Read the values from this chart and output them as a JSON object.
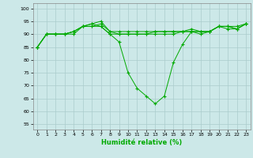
{
  "xlabel": "Humidité relative (%)",
  "background_color": "#cce8e8",
  "grid_color": "#aacccc",
  "line_color": "#00aa00",
  "xlim": [
    -0.5,
    23.5
  ],
  "ylim": [
    53,
    102
  ],
  "yticks": [
    55,
    60,
    65,
    70,
    75,
    80,
    85,
    90,
    95,
    100
  ],
  "xticks": [
    0,
    1,
    2,
    3,
    4,
    5,
    6,
    7,
    8,
    9,
    10,
    11,
    12,
    13,
    14,
    15,
    16,
    17,
    18,
    19,
    20,
    21,
    22,
    23
  ],
  "series": [
    [
      85,
      90,
      90,
      90,
      90,
      93,
      94,
      93,
      90,
      87,
      75,
      69,
      66,
      63,
      66,
      79,
      86,
      91,
      90,
      91,
      93,
      93,
      93,
      94
    ],
    [
      85,
      90,
      90,
      90,
      91,
      93,
      94,
      95,
      91,
      91,
      91,
      91,
      91,
      91,
      91,
      91,
      91,
      92,
      91,
      91,
      93,
      93,
      92,
      94
    ],
    [
      85,
      90,
      90,
      90,
      91,
      93,
      93,
      94,
      91,
      90,
      90,
      90,
      90,
      91,
      91,
      91,
      91,
      91,
      91,
      91,
      93,
      93,
      92,
      94
    ],
    [
      85,
      90,
      90,
      90,
      91,
      93,
      93,
      93,
      90,
      90,
      90,
      90,
      90,
      90,
      90,
      90,
      91,
      91,
      91,
      91,
      93,
      92,
      92,
      94
    ]
  ]
}
